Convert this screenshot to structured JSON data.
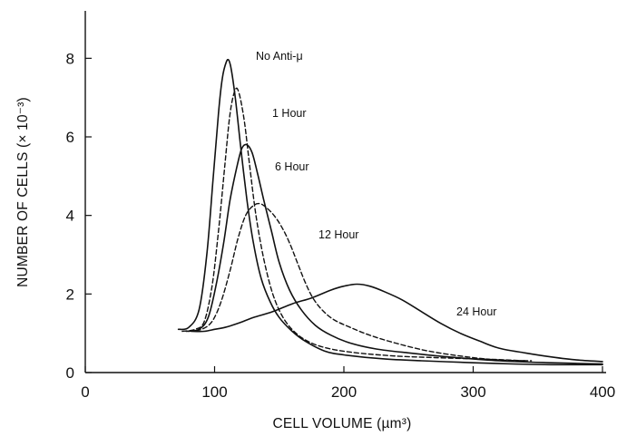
{
  "chart_data": {
    "type": "line",
    "xlabel": "CELL VOLUME (µm³)",
    "ylabel": "NUMBER OF CELLS (× 10⁻³)",
    "xlim": [
      0,
      400
    ],
    "ylim": [
      0,
      9
    ],
    "xticks": [
      0,
      100,
      200,
      300,
      400
    ],
    "yticks": [
      0,
      2,
      4,
      6,
      8
    ],
    "xtick_labels": [
      "0",
      "100",
      "200",
      "300",
      "400"
    ],
    "ytick_labels": [
      "0",
      "2",
      "4",
      "6",
      "8"
    ],
    "grid": false,
    "legend": "none (series labeled directly on curves)",
    "series": [
      {
        "name": "No Anti-μ",
        "style": "solid",
        "x": [
          72,
          80,
          88,
          94,
          99,
          103,
          106,
          109,
          111,
          113,
          116,
          120,
          125,
          130,
          136,
          143,
          150,
          160,
          170,
          185,
          200,
          230,
          260,
          300,
          330,
          360,
          400
        ],
        "y": [
          1.1,
          1.15,
          1.6,
          3.0,
          5.0,
          6.6,
          7.5,
          7.9,
          7.95,
          7.7,
          7.0,
          5.8,
          4.4,
          3.3,
          2.4,
          1.8,
          1.4,
          1.05,
          0.8,
          0.55,
          0.45,
          0.35,
          0.3,
          0.25,
          0.22,
          0.2,
          0.2
        ]
      },
      {
        "name": "1 Hour",
        "style": "dashed",
        "x": [
          75,
          85,
          92,
          98,
          103,
          108,
          112,
          116,
          119,
          123,
          127,
          132,
          138,
          145,
          153,
          163,
          175,
          190,
          210,
          240,
          270,
          300,
          320,
          340
        ],
        "y": [
          1.05,
          1.1,
          1.3,
          2.2,
          3.6,
          5.3,
          6.6,
          7.2,
          7.1,
          6.4,
          5.3,
          4.0,
          2.9,
          2.0,
          1.4,
          1.0,
          0.75,
          0.6,
          0.5,
          0.42,
          0.38,
          0.35,
          0.33,
          0.3
        ]
      },
      {
        "name": "6 Hour",
        "style": "solid",
        "x": [
          78,
          88,
          95,
          101,
          107,
          112,
          117,
          121,
          125,
          129,
          133,
          138,
          144,
          150,
          158,
          167,
          178,
          190,
          205,
          225,
          250,
          280,
          320,
          360,
          400
        ],
        "y": [
          1.05,
          1.1,
          1.4,
          2.2,
          3.3,
          4.4,
          5.2,
          5.7,
          5.8,
          5.6,
          5.1,
          4.4,
          3.6,
          2.8,
          2.1,
          1.6,
          1.2,
          0.95,
          0.75,
          0.6,
          0.5,
          0.4,
          0.3,
          0.25,
          0.22
        ]
      },
      {
        "name": "12 Hour",
        "style": "dashed",
        "x": [
          80,
          90,
          98,
          105,
          112,
          118,
          124,
          130,
          135,
          140,
          146,
          152,
          158,
          164,
          170,
          176,
          183,
          192,
          205,
          220,
          240,
          265,
          295,
          320,
          345
        ],
        "y": [
          1.05,
          1.1,
          1.3,
          1.8,
          2.6,
          3.4,
          4.0,
          4.25,
          4.3,
          4.2,
          4.0,
          3.7,
          3.3,
          2.8,
          2.3,
          1.9,
          1.6,
          1.35,
          1.15,
          0.95,
          0.75,
          0.55,
          0.4,
          0.32,
          0.3
        ]
      },
      {
        "name": "24 Hour",
        "style": "solid",
        "x": [
          82,
          92,
          100,
          108,
          118,
          130,
          145,
          160,
          175,
          190,
          200,
          210,
          220,
          232,
          245,
          260,
          275,
          290,
          305,
          320,
          340,
          360,
          380,
          400
        ],
        "y": [
          1.05,
          1.05,
          1.1,
          1.15,
          1.25,
          1.4,
          1.55,
          1.75,
          1.9,
          2.1,
          2.2,
          2.25,
          2.2,
          2.05,
          1.85,
          1.55,
          1.25,
          1.0,
          0.8,
          0.62,
          0.5,
          0.4,
          0.32,
          0.28
        ]
      }
    ]
  }
}
